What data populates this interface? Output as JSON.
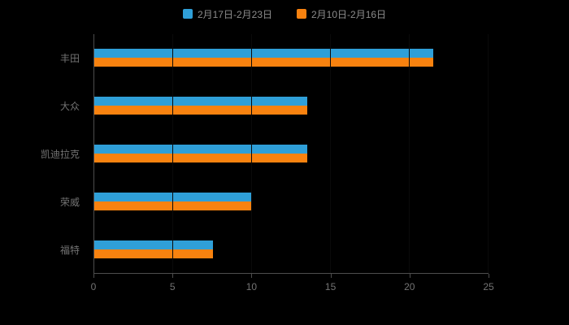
{
  "colors": {
    "background": "#000000",
    "axis_line": "#4d4d4d",
    "tick_text": "#737373",
    "legend_text": "#8c8c8c",
    "gridline_over_bars": "#0a0a0a"
  },
  "chart_data": {
    "type": "bar",
    "orientation": "horizontal",
    "title": "",
    "xlabel": "",
    "ylabel": "",
    "categories": [
      "丰田",
      "大众",
      "凯迪拉克",
      "荣威",
      "福特"
    ],
    "series": [
      {
        "name": "2月17日-2月23日",
        "color": "#2f9fd8",
        "values": [
          21.5,
          13.5,
          13.5,
          10,
          7.5
        ]
      },
      {
        "name": "2月10日-2月16日",
        "color": "#f8820f",
        "values": [
          21.5,
          13.5,
          13.5,
          10,
          7.5
        ]
      }
    ],
    "xlim": [
      0,
      25
    ],
    "xticks": [
      0,
      5,
      10,
      15,
      20,
      25
    ],
    "xtick_labels": [
      "0",
      "5",
      "10",
      "15",
      "20",
      "25"
    ],
    "grid": true,
    "legend_position": "top-center"
  }
}
